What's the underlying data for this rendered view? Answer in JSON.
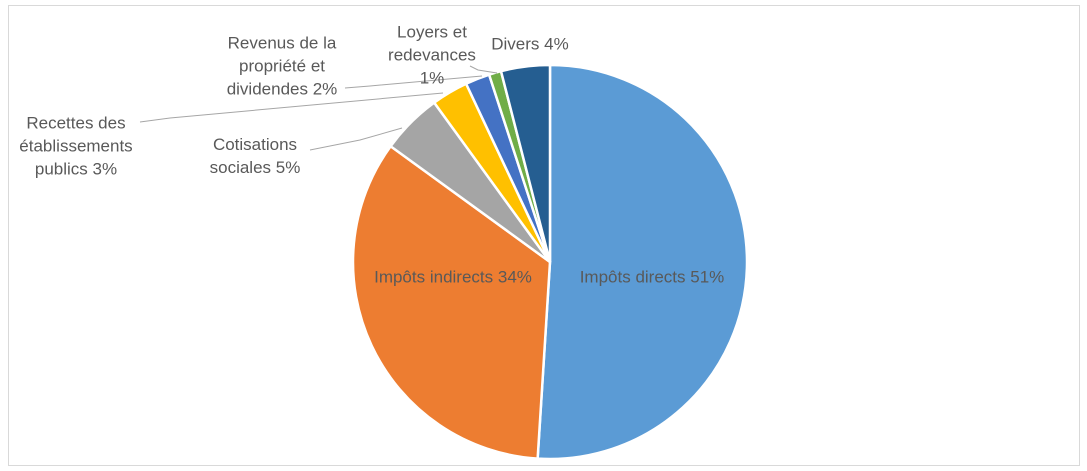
{
  "chart_data": {
    "type": "pie",
    "categories": [
      "Impôts directs",
      "Impôts indirects",
      "Cotisations sociales",
      "Recettes des établissements publics",
      "Revenus de la propriété et dividendes",
      "Loyers et redevances",
      "Divers"
    ],
    "values": [
      51,
      34,
      5,
      3,
      2,
      1,
      4
    ],
    "value_labels": [
      "51%",
      "34%",
      "5%",
      "3%",
      "2%",
      "1%",
      "4%"
    ],
    "colors": [
      "#5b9bd5",
      "#ed7d31",
      "#a5a5a5",
      "#ffc000",
      "#4472c4",
      "#70ad47",
      "#255e91"
    ]
  }
}
